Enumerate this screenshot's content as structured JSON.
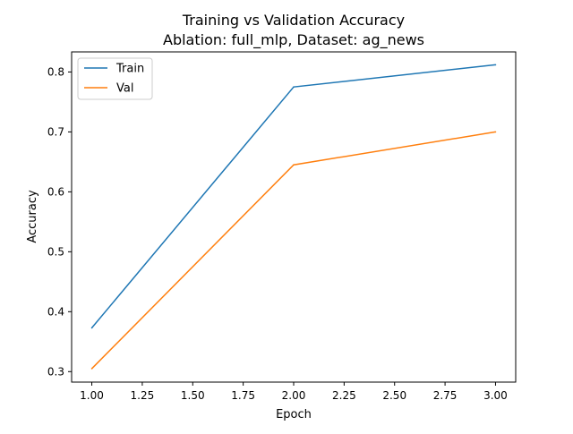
{
  "chart_data": {
    "type": "line",
    "title": "Training vs Validation Accuracy",
    "subtitle": "Ablation: full_mlp, Dataset: ag_news",
    "xlabel": "Epoch",
    "ylabel": "Accuracy",
    "x": [
      1,
      2,
      3
    ],
    "xlim": [
      0.9,
      3.1
    ],
    "ylim": [
      0.2825,
      0.8335
    ],
    "x_ticks": [
      1.0,
      1.25,
      1.5,
      1.75,
      2.0,
      2.25,
      2.5,
      2.75,
      3.0
    ],
    "x_tick_labels": [
      "1.00",
      "1.25",
      "1.50",
      "1.75",
      "2.00",
      "2.25",
      "2.50",
      "2.75",
      "3.00"
    ],
    "y_ticks": [
      0.3,
      0.4,
      0.5,
      0.6,
      0.7,
      0.8
    ],
    "y_tick_labels": [
      "0.3",
      "0.4",
      "0.5",
      "0.6",
      "0.7",
      "0.8"
    ],
    "grid": false,
    "legend_position": "top-left",
    "series": [
      {
        "name": "Train",
        "color": "#1f77b4",
        "values": [
          0.373,
          0.775,
          0.812
        ]
      },
      {
        "name": "Val",
        "color": "#ff7f0e",
        "values": [
          0.305,
          0.645,
          0.7
        ]
      }
    ]
  }
}
